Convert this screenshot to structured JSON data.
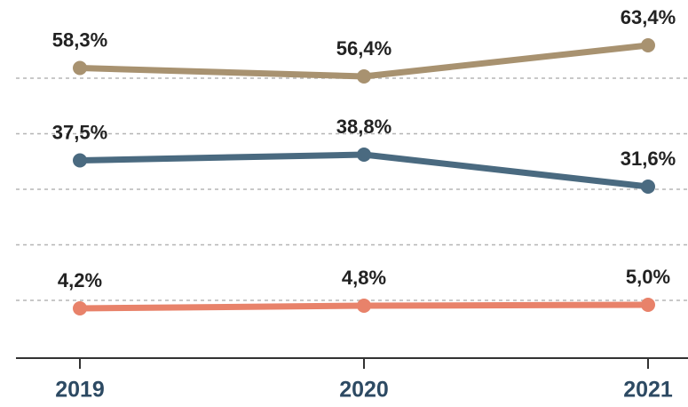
{
  "chart_data": {
    "type": "line",
    "categories": [
      "2019",
      "2020",
      "2021"
    ],
    "series": [
      {
        "color": "#a89270",
        "values": [
          58.3,
          56.4,
          63.4
        ],
        "value_labels": [
          "58,3%",
          "56,4%",
          "63,4%"
        ]
      },
      {
        "color": "#4a6a80",
        "values": [
          37.5,
          38.8,
          31.6
        ],
        "value_labels": [
          "37,5%",
          "38,8%",
          "31,6%"
        ]
      },
      {
        "color": "#e8826a",
        "values": [
          4.2,
          4.8,
          5.0
        ],
        "value_labels": [
          "4,2%",
          "4,8%",
          "5,0%"
        ]
      }
    ],
    "ylim": [
      -7,
      67
    ],
    "yticks": [
      6,
      18.5,
      31,
      43.5,
      56
    ],
    "grid": true
  }
}
